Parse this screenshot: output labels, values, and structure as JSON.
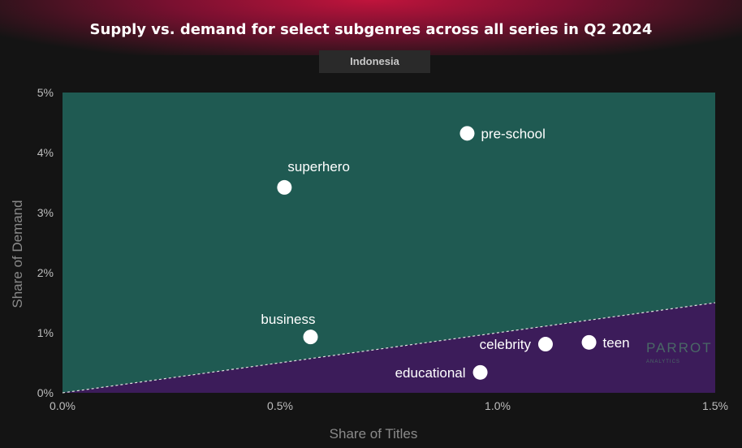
{
  "header": {
    "title": "Supply vs. demand for select subgenres across all series in Q2 2024",
    "region": "Indonesia"
  },
  "watermark": {
    "brand": "PARROT",
    "sub": "ANALYTICS"
  },
  "colors": {
    "upper_region": "#1f5a52",
    "lower_region": "#3c1c5a",
    "point": "#ffffff",
    "title_accent": "#c0143c"
  },
  "chart_data": {
    "type": "scatter",
    "xlabel": "Share of Titles",
    "ylabel": "Share of Demand",
    "xlim": [
      0,
      1.5
    ],
    "ylim": [
      0,
      5
    ],
    "x_ticks": [
      0,
      0.5,
      1.0,
      1.5
    ],
    "x_tick_labels": [
      "0.0%",
      "0.5%",
      "1.0%",
      "1.5%"
    ],
    "y_ticks": [
      0,
      1,
      2,
      3,
      4,
      5
    ],
    "y_tick_labels": [
      "0%",
      "1%",
      "2%",
      "3%",
      "4%",
      "5%"
    ],
    "reference_line": {
      "x": [
        0,
        1.5
      ],
      "y": [
        0,
        1.5
      ]
    },
    "points": [
      {
        "label": "pre-school",
        "x": 0.93,
        "y": 4.32,
        "label_pos": "right"
      },
      {
        "label": "superhero",
        "x": 0.51,
        "y": 3.42,
        "label_pos": "above-right"
      },
      {
        "label": "business",
        "x": 0.57,
        "y": 0.93,
        "label_pos": "above-left"
      },
      {
        "label": "celebrity",
        "x": 1.11,
        "y": 0.81,
        "label_pos": "left"
      },
      {
        "label": "teen",
        "x": 1.21,
        "y": 0.84,
        "label_pos": "right"
      },
      {
        "label": "educational",
        "x": 0.96,
        "y": 0.34,
        "label_pos": "left"
      }
    ]
  }
}
